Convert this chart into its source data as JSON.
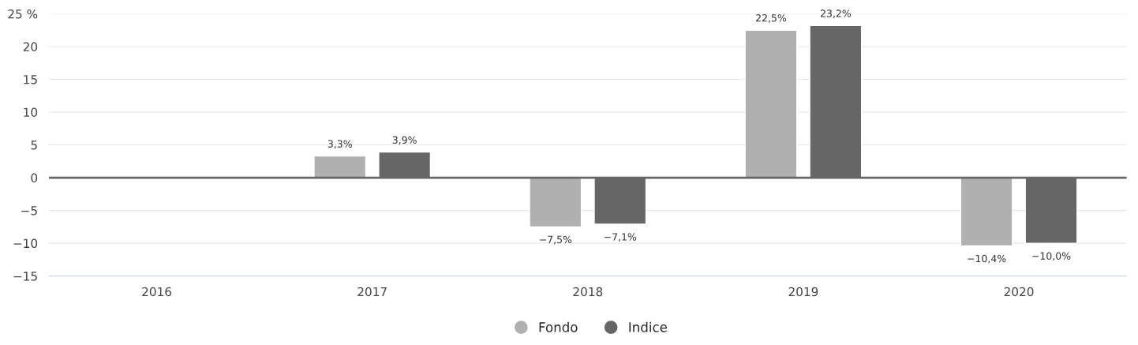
{
  "chart_data": {
    "type": "bar",
    "categories": [
      "2016",
      "2017",
      "2018",
      "2019",
      "2020"
    ],
    "series": [
      {
        "name": "Fondo",
        "color": "#b0b0b0",
        "values": [
          null,
          3.3,
          -7.5,
          22.5,
          -10.4
        ],
        "value_labels": [
          null,
          "3,3%",
          "−7,5%",
          "22,5%",
          "−10,4%"
        ]
      },
      {
        "name": "Indice",
        "color": "#666666",
        "values": [
          null,
          3.9,
          -7.1,
          23.2,
          -10.0
        ],
        "value_labels": [
          null,
          "3,9%",
          "−7,1%",
          "23,2%",
          "−10,0%"
        ]
      }
    ],
    "ylim": [
      -15,
      25
    ],
    "yticks": [
      {
        "value": -15,
        "label": "−15"
      },
      {
        "value": -10,
        "label": "−10"
      },
      {
        "value": -5,
        "label": "−5"
      },
      0,
      5,
      10,
      15,
      20,
      {
        "value": 25,
        "label": "25 %"
      }
    ],
    "ref_lines": [
      {
        "axis": "y",
        "value": 0,
        "color": "#666666"
      }
    ],
    "grid": "y",
    "legend": "bottom"
  }
}
